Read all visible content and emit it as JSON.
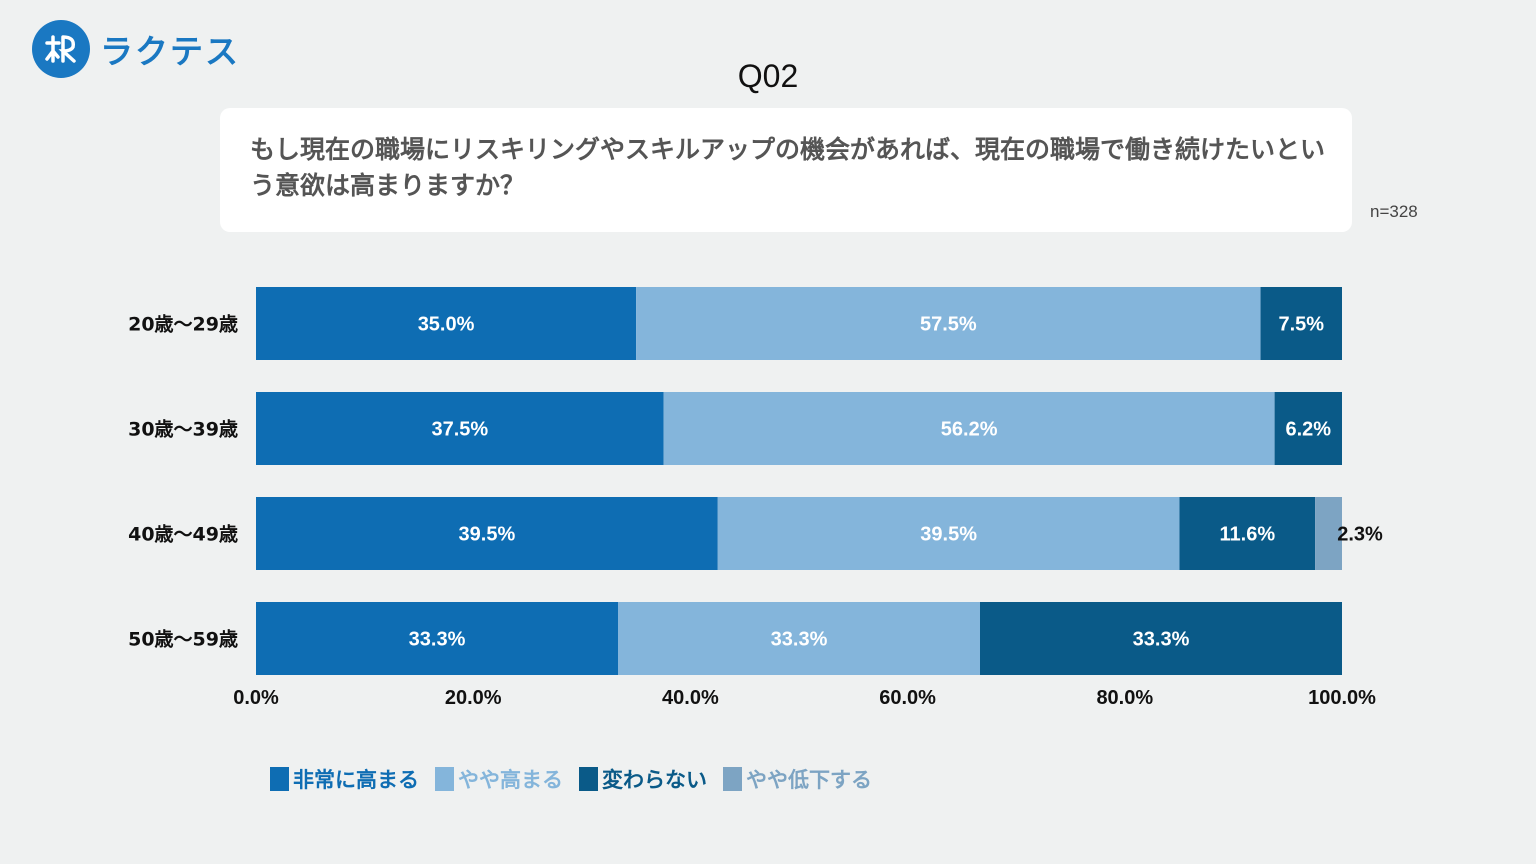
{
  "brand": {
    "name": "ラクテス"
  },
  "question": {
    "id": "Q02",
    "text": "もし現在の職場にリスキリングやスキルアップの機会があれば、現在の職場で働き続けたいという意欲は高まりますか？",
    "n": "n=328"
  },
  "colors": {
    "brand": "#1a78c2",
    "series": [
      "#0e6db3",
      "#84b5db",
      "#0a5a88",
      "#7da4c3"
    ]
  },
  "chart_data": {
    "type": "bar",
    "orientation": "horizontal",
    "stacked": true,
    "categories": [
      "20歳〜29歳",
      "30歳〜39歳",
      "40歳〜49歳",
      "50歳〜59歳"
    ],
    "series": [
      {
        "name": "非常に高まる",
        "values": [
          35.0,
          37.5,
          39.5,
          33.3
        ],
        "labels": [
          "35.0%",
          "37.5%",
          "39.5%",
          "33.3%"
        ]
      },
      {
        "name": "やや高まる",
        "values": [
          57.5,
          56.2,
          39.5,
          33.3
        ],
        "labels": [
          "57.5%",
          "56.2%",
          "39.5%",
          "33.3%"
        ]
      },
      {
        "name": "変わらない",
        "values": [
          7.5,
          6.2,
          11.6,
          33.3
        ],
        "labels": [
          "7.5%",
          "6.2%",
          "11.6%",
          "33.3%"
        ]
      },
      {
        "name": "やや低下する",
        "values": [
          0,
          0,
          2.3,
          0
        ],
        "labels": [
          "",
          "",
          "2.3%",
          ""
        ]
      }
    ],
    "xticks": [
      "0.0%",
      "20.0%",
      "40.0%",
      "60.0%",
      "80.0%",
      "100.0%"
    ],
    "xlim": [
      0,
      100
    ],
    "legend": "bottom"
  }
}
